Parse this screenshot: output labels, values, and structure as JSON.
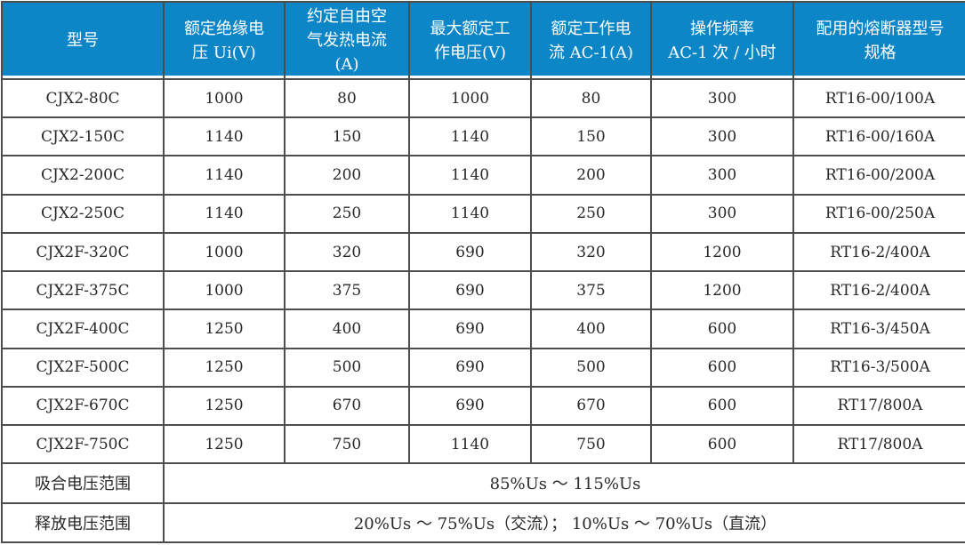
{
  "colors": {
    "header_bg": "#0c86c6",
    "header_text": "#ffffff",
    "grid": "#4d4d4d",
    "body_text": "#282828",
    "page_bg": "#ffffff"
  },
  "table": {
    "columns": [
      {
        "label": "型号",
        "width": 182
      },
      {
        "label": "额定绝缘电\n压 Ui(V)",
        "width": 136
      },
      {
        "label": "约定自由空\n气发热电流\n(A)",
        "width": 140
      },
      {
        "label": "最大额定工\n作电压(V)",
        "width": 137
      },
      {
        "label": "额定工作电\n流 AC-1(A)",
        "width": 135
      },
      {
        "label": "操作频率\nAC-1 次 / 小时",
        "width": 160
      },
      {
        "label": "配用的熔断器型号\n规格",
        "width": 195
      }
    ],
    "rows": [
      {
        "cells": [
          "CJX2-80C",
          "1000",
          "80",
          "1000",
          "80",
          "300",
          "RT16-00/100A"
        ]
      },
      {
        "cells": [
          "CJX2-150C",
          "1140",
          "150",
          "1140",
          "150",
          "300",
          "RT16-00/160A"
        ]
      },
      {
        "cells": [
          "CJX2-200C",
          "1140",
          "200",
          "1140",
          "200",
          "300",
          "RT16-00/200A"
        ]
      },
      {
        "cells": [
          "CJX2-250C",
          "1140",
          "250",
          "1140",
          "250",
          "300",
          "RT16-00/250A"
        ]
      },
      {
        "cells": [
          "CJX2F-320C",
          "1000",
          "320",
          "690",
          "320",
          "1200",
          "RT16-2/400A"
        ]
      },
      {
        "cells": [
          "CJX2F-375C",
          "1000",
          "375",
          "690",
          "375",
          "1200",
          "RT16-2/400A"
        ]
      },
      {
        "cells": [
          "CJX2F-400C",
          "1250",
          "400",
          "690",
          "400",
          "600",
          "RT16-3/450A"
        ]
      },
      {
        "cells": [
          "CJX2F-500C",
          "1250",
          "500",
          "690",
          "500",
          "600",
          "RT16-3/500A"
        ]
      },
      {
        "cells": [
          "CJX2F-670C",
          "1250",
          "670",
          "690",
          "670",
          "600",
          "RT17/800A"
        ]
      },
      {
        "cells": [
          "CJX2F-750C",
          "1250",
          "750",
          "1140",
          "750",
          "600",
          "RT17/800A"
        ]
      }
    ],
    "footer_rows": [
      {
        "label": "吸合电压范围",
        "value": "85%Us ～ 115%Us"
      },
      {
        "label": "释放电压范围",
        "value": "20%Us ～ 75%Us（交流）； 10%Us ～ 70%Us（直流）"
      }
    ]
  }
}
